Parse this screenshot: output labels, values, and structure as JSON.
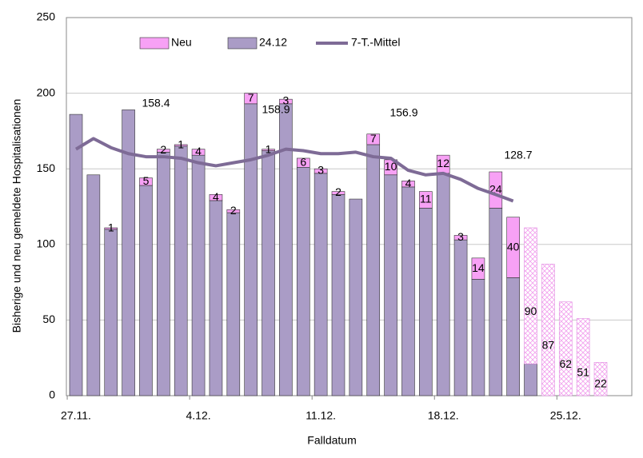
{
  "chart_data": {
    "type": "bar",
    "x_label": "Falldatum",
    "y_label": "Bisherige und neu gemeldete  Hospitalisationen",
    "categories": [
      "27.11.",
      null,
      null,
      null,
      null,
      null,
      null,
      "4.12.",
      null,
      null,
      null,
      null,
      null,
      null,
      "11.12.",
      null,
      null,
      null,
      null,
      null,
      null,
      "18.12.",
      null,
      null,
      null,
      null,
      null,
      null,
      "25.12.",
      null,
      null
    ],
    "series": [
      {
        "name": "Neu",
        "color": "#f7a1f5",
        "values": [
          null,
          null,
          1,
          null,
          5,
          2,
          1,
          4,
          4,
          2,
          7,
          1,
          3,
          6,
          3,
          2,
          null,
          7,
          10,
          4,
          11,
          12,
          3,
          14,
          24,
          40,
          null,
          null,
          null,
          null,
          null
        ]
      },
      {
        "name": "24.12",
        "color": "#aa9cc6",
        "values": [
          186,
          146,
          110,
          189,
          139,
          161,
          165,
          159,
          129,
          121,
          193,
          162,
          193,
          151,
          147,
          133,
          130,
          166,
          146,
          138,
          124,
          147,
          103,
          77,
          124,
          78,
          21,
          null,
          null,
          null,
          null
        ]
      },
      {
        "color": "#f7a1f5",
        "pattern": "hatch",
        "values": [
          null,
          null,
          null,
          null,
          null,
          null,
          null,
          null,
          null,
          null,
          null,
          null,
          null,
          null,
          null,
          null,
          null,
          null,
          null,
          null,
          null,
          null,
          null,
          null,
          null,
          null,
          90,
          87,
          62,
          51,
          22
        ]
      },
      {
        "name": "7-T.-Mittel",
        "type": "line",
        "color": "#7e6b96",
        "values": [
          163,
          170,
          164,
          160,
          158,
          158,
          157,
          154,
          152,
          154,
          156,
          159,
          163,
          162,
          160,
          160,
          161,
          158,
          157,
          149,
          146,
          147,
          143,
          137,
          133,
          128.7,
          null,
          null,
          null,
          null,
          null
        ]
      }
    ],
    "annotations": [
      "158.4",
      "158.9",
      "156.9",
      "128.7"
    ],
    "ylim": [
      0,
      250
    ],
    "yticks": [
      0,
      50,
      100,
      150,
      200,
      250
    ],
    "grid": true
  }
}
